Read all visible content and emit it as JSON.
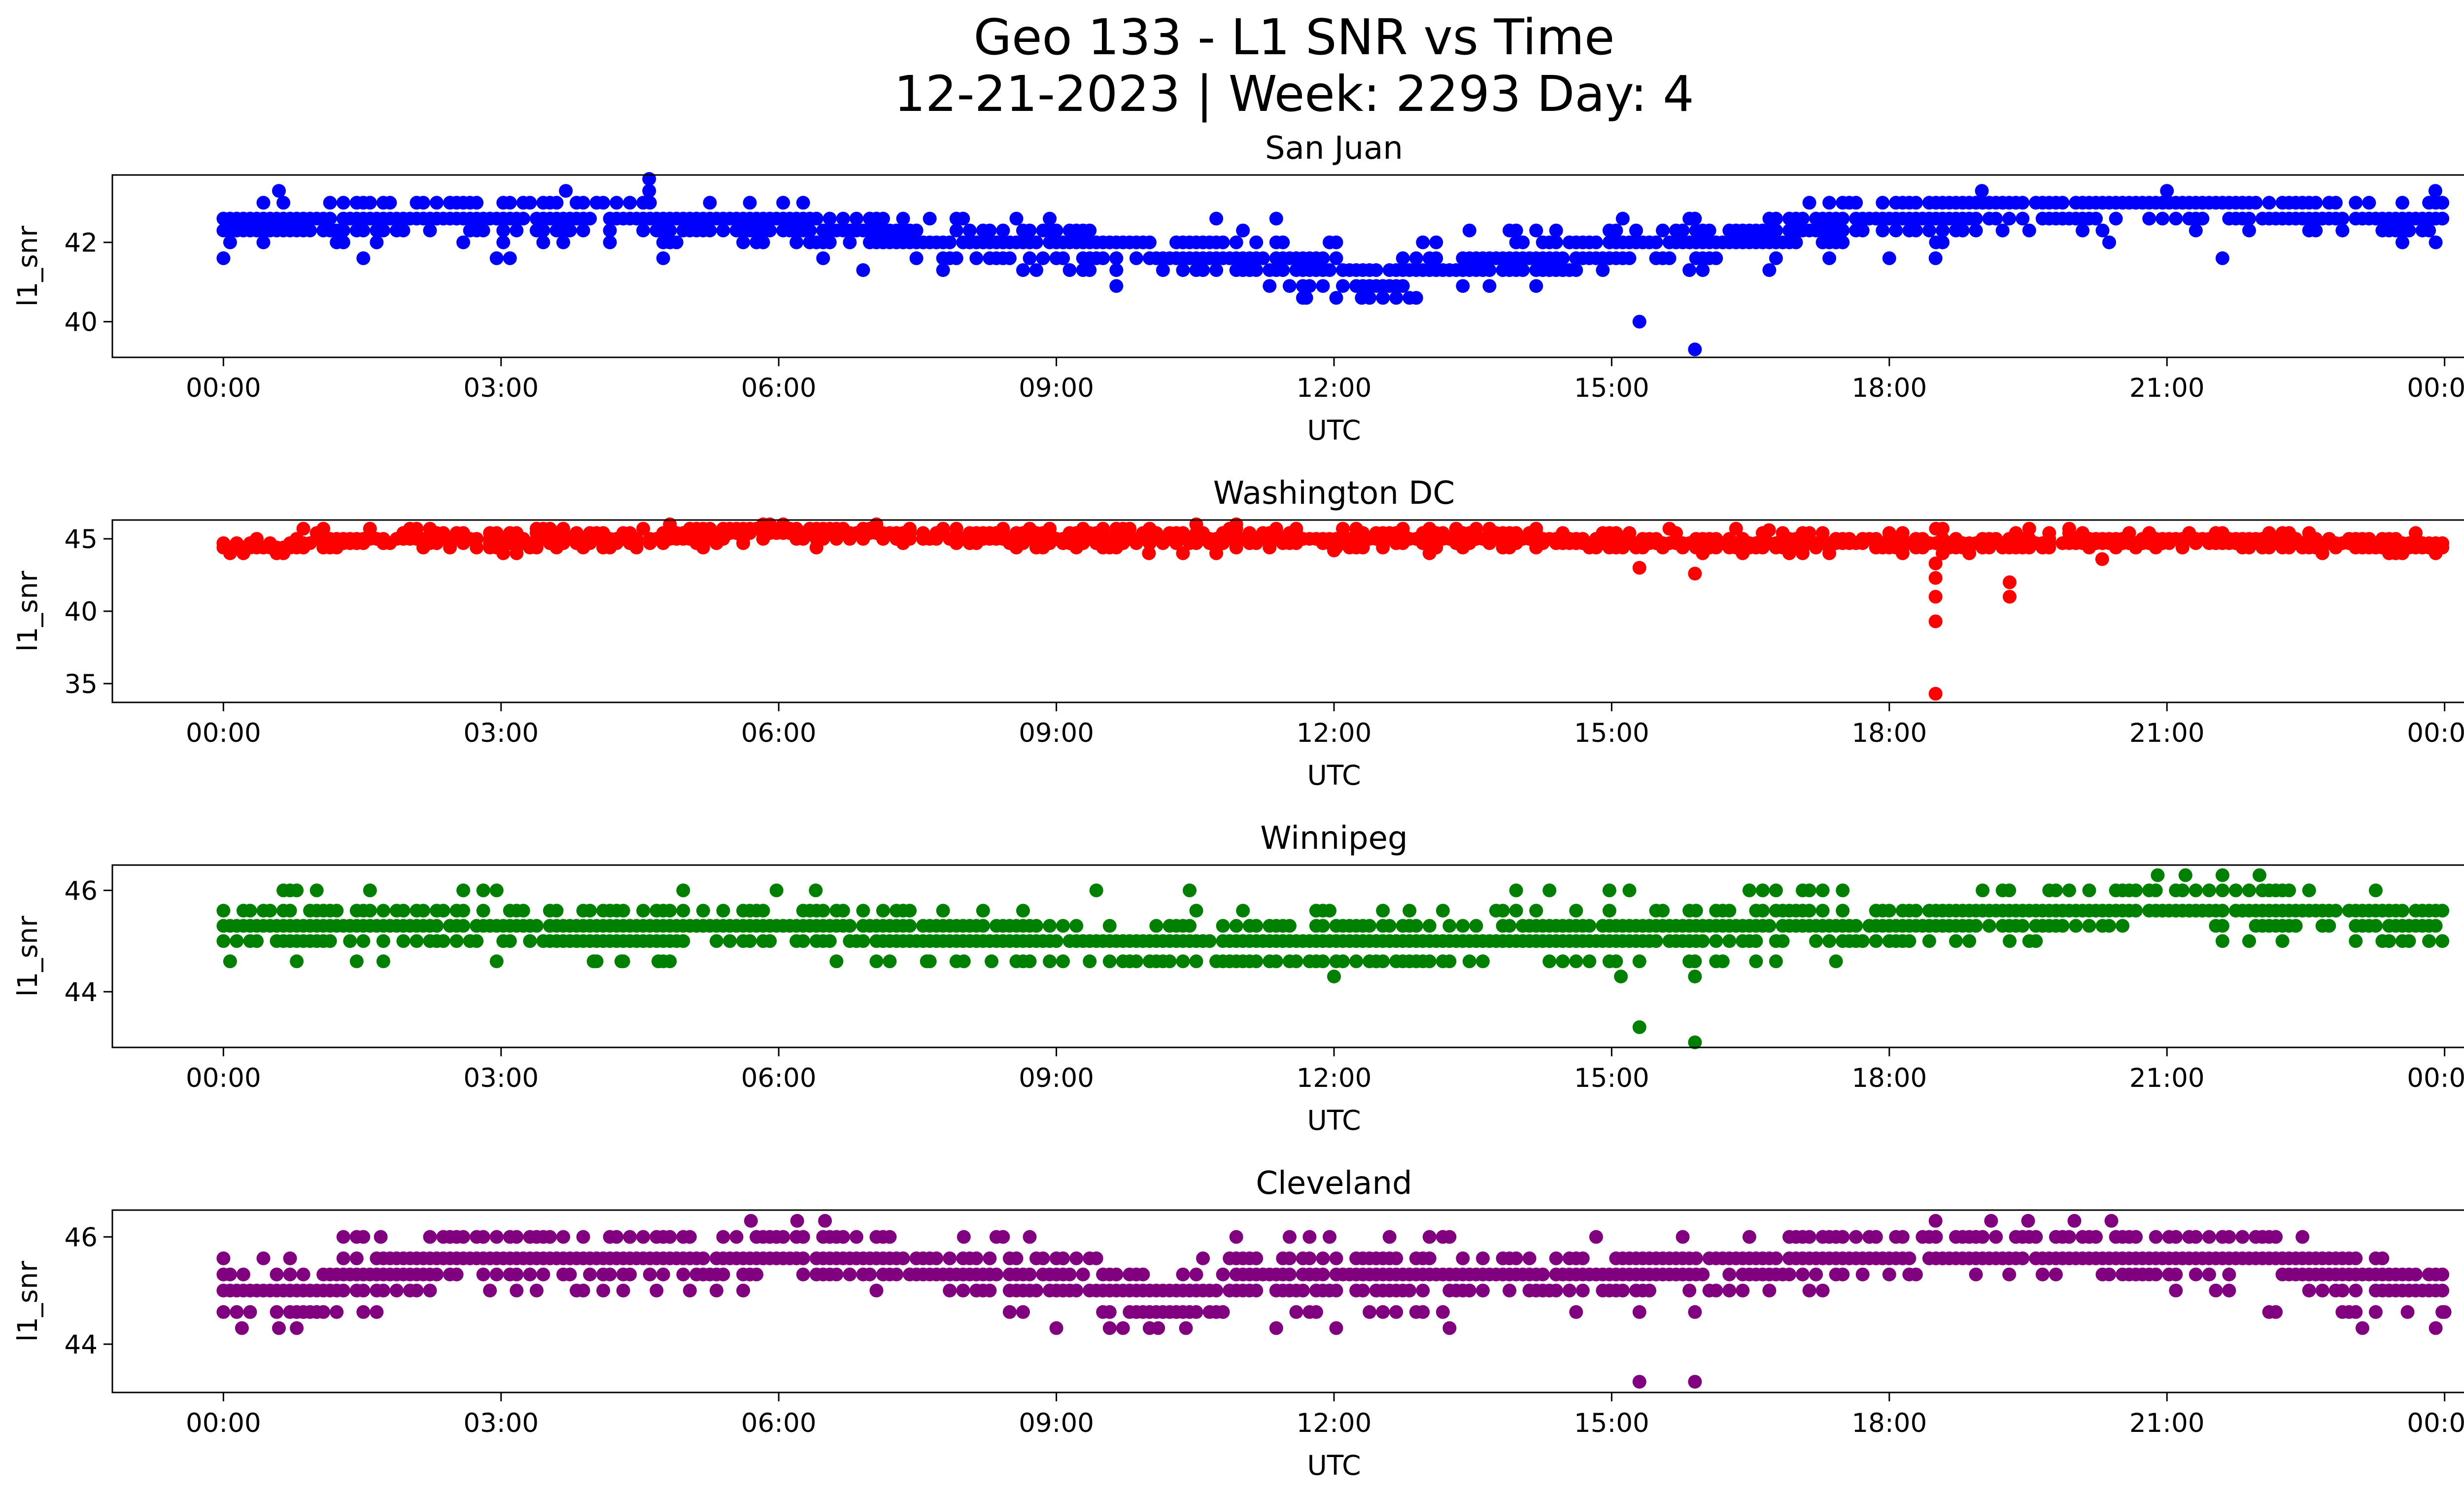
{
  "figure": {
    "title_line1": "Geo 133 - L1 SNR vs Time",
    "title_line2": "12-21-2023 | Week: 2293 Day: 4"
  },
  "chart_data": [
    {
      "type": "scatter",
      "title": "San Juan",
      "xlabel": "UTC",
      "ylabel": "l1_snr",
      "color": "#0000ff",
      "xticks": [
        "00:00",
        "03:00",
        "06:00",
        "09:00",
        "12:00",
        "15:00",
        "18:00",
        "21:00",
        "00:00"
      ],
      "xlim_hours": [
        -1.2,
        25.2
      ],
      "yticks": [
        40,
        42
      ],
      "ylim": [
        39.1,
        43.7
      ],
      "levels": [
        40.6,
        40.9,
        41.3,
        41.6,
        42.0,
        42.3,
        42.6,
        43.0
      ],
      "profile": {
        "x": [
          0,
          1,
          2,
          3,
          4,
          5,
          6,
          7,
          8,
          9,
          10,
          11,
          11.5,
          12,
          12.5,
          13,
          14,
          15,
          16,
          17,
          18,
          19,
          20,
          21,
          22,
          23,
          24
        ],
        "y": [
          42.4,
          42.5,
          42.6,
          42.6,
          42.7,
          42.6,
          42.4,
          42.2,
          42.0,
          41.9,
          41.8,
          41.7,
          41.6,
          41.2,
          41.0,
          41.3,
          41.6,
          41.8,
          42.0,
          42.3,
          42.6,
          42.8,
          42.9,
          42.9,
          42.8,
          42.8,
          42.6
        ]
      },
      "outliers": [
        {
          "x": 0.6,
          "y": 43.3
        },
        {
          "x": 3.7,
          "y": 43.3
        },
        {
          "x": 4.6,
          "y": 43.6
        },
        {
          "x": 4.6,
          "y": 43.3
        },
        {
          "x": 11.7,
          "y": 40.6
        },
        {
          "x": 12.3,
          "y": 40.6
        },
        {
          "x": 15.3,
          "y": 40.0
        },
        {
          "x": 15.9,
          "y": 39.3
        },
        {
          "x": 15.9,
          "y": 42.6
        },
        {
          "x": 18.5,
          "y": 41.6
        },
        {
          "x": 21.6,
          "y": 41.6
        },
        {
          "x": 19.0,
          "y": 43.3
        },
        {
          "x": 21.0,
          "y": 43.3
        },
        {
          "x": 23.9,
          "y": 43.3
        }
      ]
    },
    {
      "type": "scatter",
      "title": "Washington DC",
      "xlabel": "UTC",
      "ylabel": "l1_snr",
      "color": "#ff0000",
      "xticks": [
        "00:00",
        "03:00",
        "06:00",
        "09:00",
        "12:00",
        "15:00",
        "18:00",
        "21:00",
        "00:00"
      ],
      "xlim_hours": [
        -1.2,
        25.2
      ],
      "yticks": [
        35,
        40,
        45
      ],
      "ylim": [
        33.7,
        46.3
      ],
      "levels": [
        44.0,
        44.4,
        44.7,
        45.0,
        45.4,
        45.7,
        46.0
      ],
      "profile": {
        "x": [
          0,
          0.5,
          1,
          2,
          3,
          4,
          5,
          6,
          7,
          8,
          9,
          10,
          11,
          12,
          13,
          14,
          15,
          16,
          17,
          18,
          19,
          20,
          21,
          22,
          23,
          24
        ],
        "y": [
          44.5,
          44.3,
          44.8,
          45.0,
          45.0,
          45.1,
          45.2,
          45.5,
          45.3,
          45.1,
          45.0,
          45.0,
          45.0,
          45.0,
          45.0,
          45.0,
          44.8,
          44.7,
          44.7,
          44.7,
          44.7,
          44.8,
          45.0,
          44.8,
          44.6,
          44.5
        ]
      },
      "outliers": [
        {
          "x": 10.0,
          "y": 44.0
        },
        {
          "x": 12.0,
          "y": 44.2
        },
        {
          "x": 15.3,
          "y": 43.0
        },
        {
          "x": 15.9,
          "y": 42.6
        },
        {
          "x": 18.5,
          "y": 43.3
        },
        {
          "x": 18.5,
          "y": 42.3
        },
        {
          "x": 18.5,
          "y": 41.0
        },
        {
          "x": 18.5,
          "y": 39.3
        },
        {
          "x": 18.5,
          "y": 34.3
        },
        {
          "x": 19.3,
          "y": 42.0
        },
        {
          "x": 19.3,
          "y": 41.0
        },
        {
          "x": 20.3,
          "y": 43.6
        },
        {
          "x": 16.7,
          "y": 45.6
        }
      ]
    },
    {
      "type": "scatter",
      "title": "Winnipeg",
      "xlabel": "UTC",
      "ylabel": "l1_snr",
      "color": "#008000",
      "xticks": [
        "00:00",
        "03:00",
        "06:00",
        "09:00",
        "12:00",
        "15:00",
        "18:00",
        "21:00",
        "00:00"
      ],
      "xlim_hours": [
        -1.2,
        25.2
      ],
      "yticks": [
        44,
        46
      ],
      "ylim": [
        42.9,
        46.5
      ],
      "levels": [
        44.6,
        45.0,
        45.3,
        45.6,
        46.0
      ],
      "profile": {
        "x": [
          0,
          1,
          2,
          3,
          4,
          5,
          6,
          7,
          8,
          9,
          10,
          11,
          12,
          13,
          14,
          15,
          16,
          17,
          18,
          19,
          20,
          21,
          22,
          23,
          24
        ],
        "y": [
          45.3,
          45.4,
          45.4,
          45.3,
          45.1,
          45.2,
          45.3,
          45.2,
          45.1,
          45.0,
          45.0,
          45.0,
          45.0,
          45.0,
          45.1,
          45.1,
          45.2,
          45.3,
          45.4,
          45.5,
          45.7,
          45.8,
          45.7,
          45.5,
          45.4
        ]
      },
      "outliers": [
        {
          "x": 6.4,
          "y": 46.0
        },
        {
          "x": 12.0,
          "y": 44.3
        },
        {
          "x": 15.1,
          "y": 44.3
        },
        {
          "x": 15.3,
          "y": 44.6
        },
        {
          "x": 15.3,
          "y": 43.3
        },
        {
          "x": 15.9,
          "y": 44.6
        },
        {
          "x": 15.9,
          "y": 44.3
        },
        {
          "x": 15.9,
          "y": 43.0
        },
        {
          "x": 16.2,
          "y": 44.6
        },
        {
          "x": 4.0,
          "y": 44.6
        },
        {
          "x": 4.3,
          "y": 44.6
        },
        {
          "x": 4.7,
          "y": 44.6
        },
        {
          "x": 7.6,
          "y": 44.6
        },
        {
          "x": 8.0,
          "y": 44.6
        },
        {
          "x": 8.3,
          "y": 44.6
        },
        {
          "x": 20.9,
          "y": 46.3
        },
        {
          "x": 21.2,
          "y": 46.3
        },
        {
          "x": 21.6,
          "y": 46.3
        },
        {
          "x": 22.0,
          "y": 46.3
        },
        {
          "x": 19.3,
          "y": 45.0
        },
        {
          "x": 21.6,
          "y": 45.0
        },
        {
          "x": 23.4,
          "y": 45.0
        }
      ]
    },
    {
      "type": "scatter",
      "title": "Cleveland",
      "xlabel": "UTC",
      "ylabel": "l1_snr",
      "color": "#800080",
      "xticks": [
        "00:00",
        "03:00",
        "06:00",
        "09:00",
        "12:00",
        "15:00",
        "18:00",
        "21:00",
        "00:00"
      ],
      "xlim_hours": [
        -1.2,
        25.2
      ],
      "yticks": [
        44,
        46
      ],
      "ylim": [
        43.1,
        46.5
      ],
      "levels": [
        44.3,
        44.6,
        45.0,
        45.3,
        45.6,
        46.0
      ],
      "profile": {
        "x": [
          0,
          0.5,
          1,
          1.5,
          2,
          3,
          4,
          5,
          6,
          7,
          8,
          9,
          10,
          10.5,
          11,
          12,
          13,
          14,
          15,
          16,
          17,
          18,
          19,
          20,
          21,
          22,
          23,
          24
        ],
        "y": [
          44.9,
          44.9,
          45.0,
          45.3,
          45.5,
          45.7,
          45.7,
          45.7,
          45.8,
          45.6,
          45.4,
          45.2,
          44.9,
          44.8,
          45.2,
          45.3,
          45.3,
          45.4,
          45.4,
          45.5,
          45.6,
          45.8,
          45.8,
          45.8,
          45.7,
          45.6,
          45.3,
          45.0
        ]
      },
      "outliers": [
        {
          "x": 5.7,
          "y": 46.3
        },
        {
          "x": 6.2,
          "y": 46.3
        },
        {
          "x": 6.5,
          "y": 46.3
        },
        {
          "x": 8.0,
          "y": 46.0
        },
        {
          "x": 1.7,
          "y": 46.0
        },
        {
          "x": 0.2,
          "y": 44.3
        },
        {
          "x": 0.6,
          "y": 44.3
        },
        {
          "x": 10.1,
          "y": 44.3
        },
        {
          "x": 10.4,
          "y": 44.3
        },
        {
          "x": 15.3,
          "y": 44.6
        },
        {
          "x": 15.3,
          "y": 43.3
        },
        {
          "x": 15.9,
          "y": 44.6
        },
        {
          "x": 15.9,
          "y": 43.3
        },
        {
          "x": 18.5,
          "y": 46.3
        },
        {
          "x": 19.1,
          "y": 46.3
        },
        {
          "x": 19.5,
          "y": 46.3
        },
        {
          "x": 20.0,
          "y": 46.3
        },
        {
          "x": 20.4,
          "y": 46.3
        },
        {
          "x": 23.6,
          "y": 44.6
        },
        {
          "x": 24.0,
          "y": 44.6
        }
      ]
    }
  ]
}
